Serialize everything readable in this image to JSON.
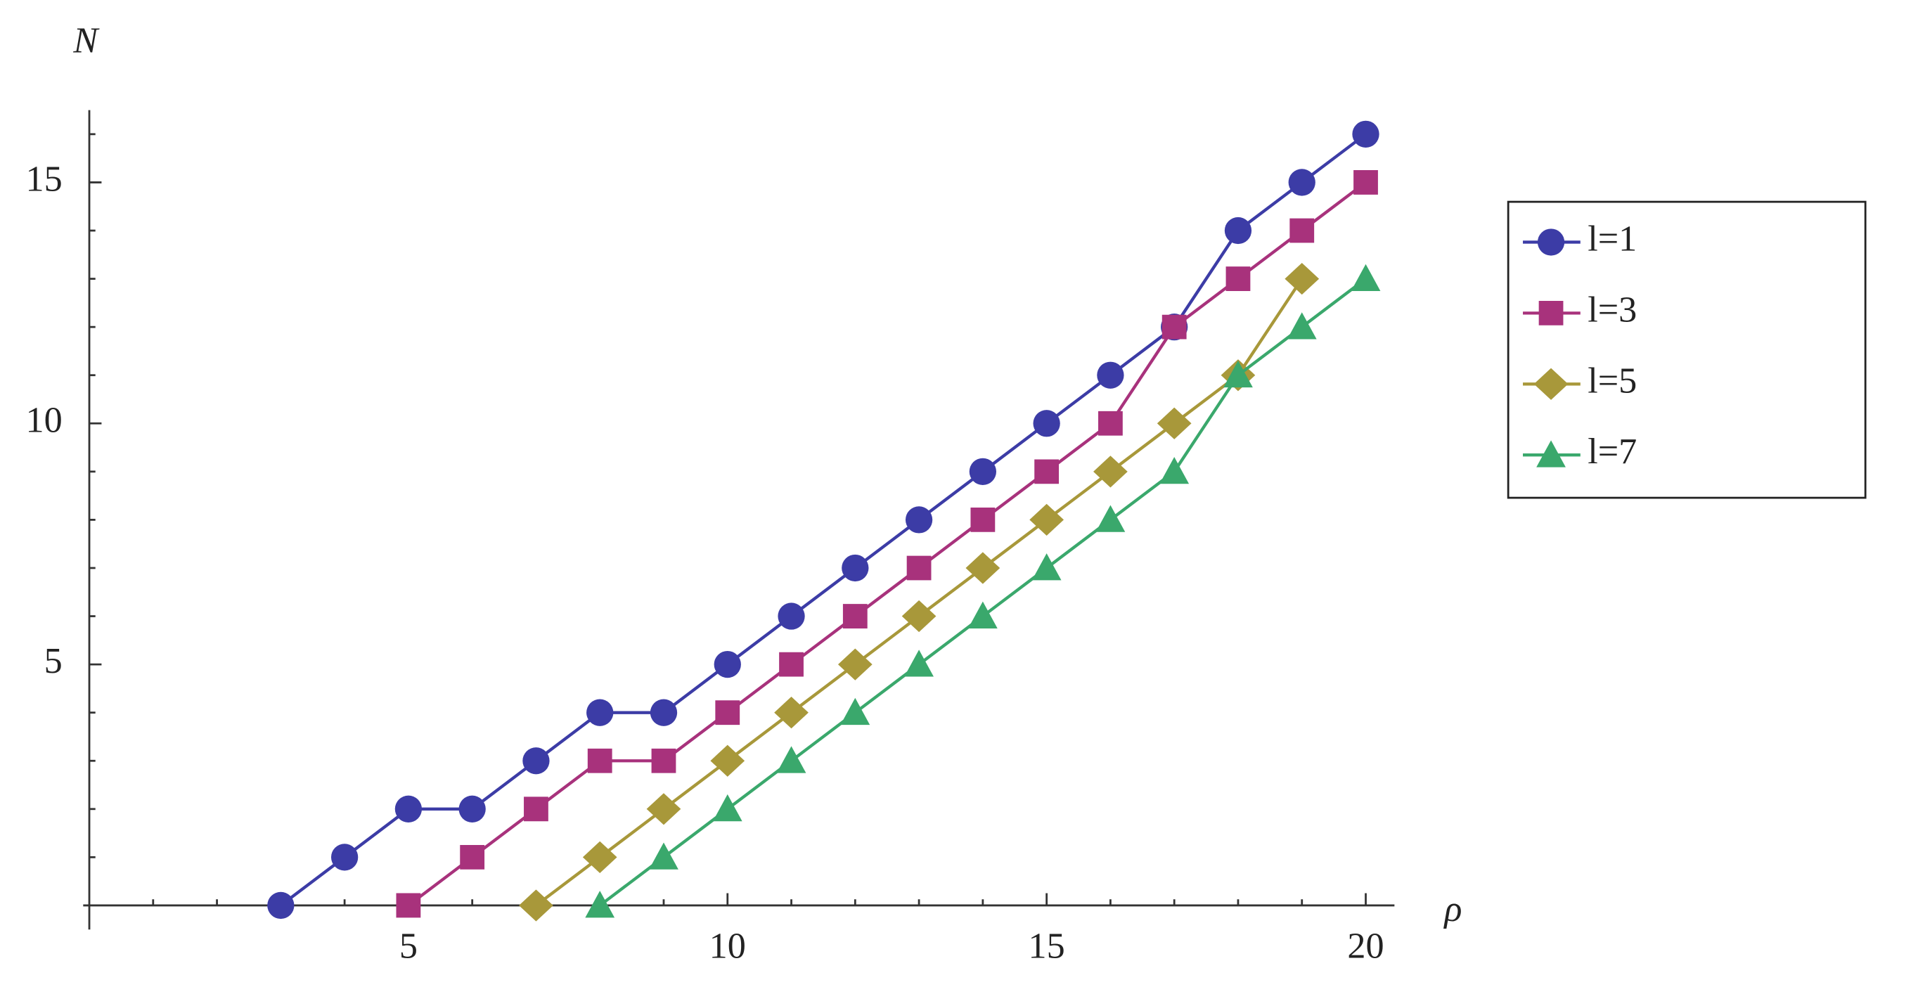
{
  "chart_data": {
    "type": "line",
    "x_label": "ρ",
    "y_label": "N",
    "xlim": [
      0,
      20.45
    ],
    "ylim": [
      -0.5,
      16.5
    ],
    "xticks": [
      5,
      10,
      15,
      20
    ],
    "yticks": [
      5,
      10,
      15
    ],
    "xminorticks": [
      1,
      2,
      3,
      4,
      6,
      7,
      8,
      9,
      11,
      12,
      13,
      14,
      16,
      17,
      18,
      19
    ],
    "yminorticks": [
      1,
      2,
      3,
      4,
      6,
      7,
      8,
      9,
      11,
      12,
      13,
      14,
      16
    ],
    "legend": "right",
    "series": [
      {
        "name": "l=1",
        "color": "#3c3ca6",
        "marker": "circle",
        "x": [
          3,
          4,
          5,
          6,
          7,
          8,
          9,
          10,
          11,
          12,
          13,
          14,
          15,
          16,
          17,
          18,
          19,
          20
        ],
        "values": [
          0,
          1,
          2,
          2,
          3,
          4,
          4,
          5,
          6,
          7,
          8,
          9,
          10,
          11,
          12,
          14,
          15,
          16
        ]
      },
      {
        "name": "l=3",
        "color": "#a8327c",
        "marker": "square",
        "x": [
          5,
          6,
          7,
          8,
          9,
          10,
          11,
          12,
          13,
          14,
          15,
          16,
          17,
          18,
          19,
          20
        ],
        "values": [
          0,
          1,
          2,
          3,
          3,
          4,
          5,
          6,
          7,
          8,
          9,
          10,
          12,
          13,
          14,
          15
        ]
      },
      {
        "name": "l=5",
        "color": "#a8983a",
        "marker": "diamond",
        "x": [
          7,
          8,
          9,
          10,
          11,
          12,
          13,
          14,
          15,
          16,
          17,
          18,
          19
        ],
        "values": [
          0,
          1,
          2,
          3,
          4,
          5,
          6,
          7,
          8,
          9,
          10,
          11,
          13
        ]
      },
      {
        "name": "l=7",
        "color": "#3aa86c",
        "marker": "triangle",
        "x": [
          8,
          9,
          10,
          11,
          12,
          13,
          14,
          15,
          16,
          17,
          18,
          19,
          20
        ],
        "values": [
          0,
          1,
          2,
          3,
          4,
          5,
          6,
          7,
          8,
          9,
          11,
          12,
          13
        ]
      }
    ]
  }
}
